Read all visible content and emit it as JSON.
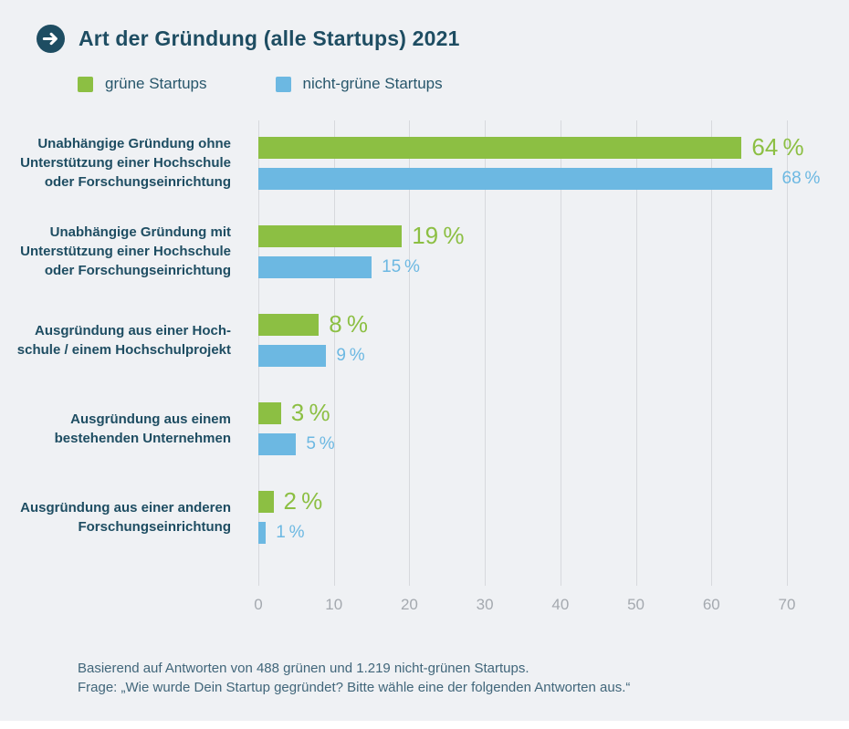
{
  "header": {
    "title": "Art der Gründung (alle Startups) 2021"
  },
  "legend": [
    {
      "label": "grüne Startups",
      "color": "#8cbf43"
    },
    {
      "label": "nicht-grüne Startups",
      "color": "#6cb8e2"
    }
  ],
  "chart_data": {
    "type": "bar",
    "orientation": "horizontal",
    "title": "Art der Gründung (alle Startups) 2021",
    "categories": [
      [
        "Unabhängige Gründung ohne",
        "Unterstützung einer Hochschule",
        "oder Forschungseinrichtung"
      ],
      [
        "Unabhängige Gründung mit",
        "Unterstützung einer Hochschule",
        "oder Forschungseinrichtung"
      ],
      [
        "Ausgründung aus einer Hoch-",
        "schule / einem Hochschulprojekt"
      ],
      [
        "Ausgründung aus einem",
        "bestehenden Unternehmen"
      ],
      [
        "Ausgründung aus einer anderen",
        "Forschungseinrichtung"
      ]
    ],
    "series": [
      {
        "name": "grüne Startups",
        "color": "#8cbf43",
        "values": [
          64,
          19,
          8,
          3,
          2
        ]
      },
      {
        "name": "nicht-grüne Startups",
        "color": "#6cb8e2",
        "values": [
          68,
          15,
          9,
          5,
          1
        ]
      }
    ],
    "value_suffix": " %",
    "xlim": [
      0,
      70
    ],
    "xticks": [
      0,
      10,
      20,
      30,
      40,
      50,
      60,
      70
    ],
    "grid": true,
    "legend_position": "top-left"
  },
  "footer": {
    "line1": "Basierend auf Antworten von 488 grünen und 1.219 nicht-grünen Startups.",
    "line2": "Frage: „Wie wurde Dein Startup gegründet? Bitte wähle eine der folgenden Antworten aus.“"
  }
}
